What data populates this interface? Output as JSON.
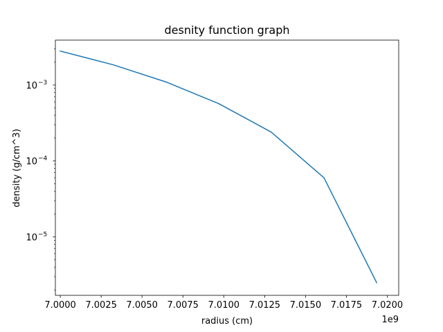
{
  "chart_data": {
    "type": "line",
    "title": "desnity function graph",
    "xlabel": "radius (cm)",
    "ylabel": "density (g/cm^3)",
    "x_offset_label": "1e9",
    "xscale": "linear",
    "yscale": "log",
    "xlim": [
      6999700000,
      7020700000
    ],
    "ylim": [
      1.7e-06,
      0.0039
    ],
    "grid": false,
    "x_ticks": [
      {
        "value": 7000000000,
        "label": "7.0000"
      },
      {
        "value": 7002500000,
        "label": "7.0025"
      },
      {
        "value": 7005000000,
        "label": "7.0050"
      },
      {
        "value": 7007500000,
        "label": "7.0075"
      },
      {
        "value": 7010000000,
        "label": "7.0100"
      },
      {
        "value": 7012500000,
        "label": "7.0125"
      },
      {
        "value": 7015000000,
        "label": "7.0150"
      },
      {
        "value": 7017500000,
        "label": "7.0175"
      },
      {
        "value": 7020000000,
        "label": "7.0200"
      }
    ],
    "y_ticks": [
      {
        "value": 0.001,
        "base": "10",
        "exp": "−3"
      },
      {
        "value": 0.0001,
        "base": "10",
        "exp": "−4"
      },
      {
        "value": 1e-05,
        "base": "10",
        "exp": "−5"
      }
    ],
    "series": [
      {
        "color": "#1f77b4",
        "x": [
          7000000000,
          7003220000,
          7006450000,
          7009680000,
          7012900000,
          7016130000,
          7019350000
        ],
        "y": [
          0.0028,
          0.00185,
          0.0011,
          0.00057,
          0.00024,
          6e-05,
          2.5e-06
        ]
      }
    ]
  }
}
